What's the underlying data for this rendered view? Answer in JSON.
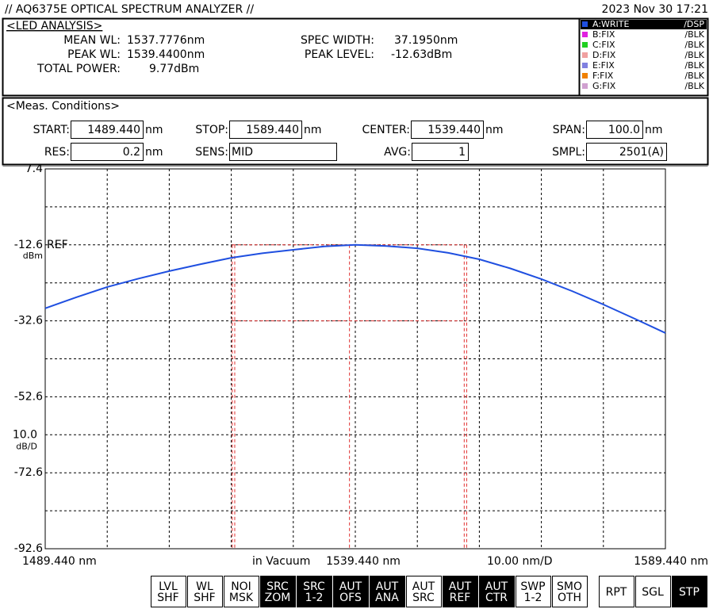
{
  "header": {
    "title": "// AQ6375E OPTICAL SPECTRUM ANALYZER //",
    "datetime": "2023 Nov 30 17:21"
  },
  "analysis": {
    "title": "<LED ANALYSIS>",
    "left": [
      {
        "label": "MEAN WL:",
        "value": "1537.7776nm"
      },
      {
        "label": "PEAK WL:",
        "value": "1539.4400nm"
      },
      {
        "label": "TOTAL POWER:",
        "value": "9.77dBm"
      }
    ],
    "right": [
      {
        "label": "SPEC WIDTH:",
        "value": "37.1950nm"
      },
      {
        "label": "PEAK LEVEL:",
        "value": "-12.63dBm"
      }
    ]
  },
  "traces": [
    {
      "name": "A:WRITE",
      "mode": "/DSP",
      "color": "#1f4fe0",
      "active": true
    },
    {
      "name": "B:FIX",
      "mode": "/BLK",
      "color": "#e020e0",
      "active": false
    },
    {
      "name": "C:FIX",
      "mode": "/BLK",
      "color": "#20d020",
      "active": false
    },
    {
      "name": "D:FIX",
      "mode": "/BLK",
      "color": "#f0a0a0",
      "active": false
    },
    {
      "name": "E:FIX",
      "mode": "/BLK",
      "color": "#8080e0",
      "active": false
    },
    {
      "name": "F:FIX",
      "mode": "/BLK",
      "color": "#f08000",
      "active": false
    },
    {
      "name": "G:FIX",
      "mode": "/BLK",
      "color": "#d0a0d0",
      "active": false
    }
  ],
  "conditions": {
    "title": "<Meas. Conditions>",
    "rows": [
      [
        {
          "label": "START:",
          "value": "1489.440",
          "unit": "nm"
        },
        {
          "label": "STOP:",
          "value": "1589.440",
          "unit": "nm"
        },
        {
          "label": "CENTER:",
          "value": "1539.440",
          "unit": "nm"
        },
        {
          "label": "SPAN:",
          "value": "100.0",
          "unit": "nm"
        }
      ],
      [
        {
          "label": "RES:",
          "value": "0.2",
          "unit": "nm"
        },
        {
          "label": "SENS:",
          "value": "MID"
        },
        {
          "label": "AVG:",
          "value": "1"
        },
        {
          "label": "SMPL:",
          "value": "2501(A)"
        }
      ]
    ]
  },
  "chart_data": {
    "type": "line",
    "x": [
      1489.44,
      1494.44,
      1499.44,
      1504.44,
      1509.44,
      1514.44,
      1519.44,
      1524.44,
      1529.44,
      1534.44,
      1539.44,
      1544.44,
      1549.44,
      1554.44,
      1559.44,
      1564.44,
      1569.44,
      1574.44,
      1579.44,
      1584.44,
      1589.44
    ],
    "series": [
      {
        "name": "A:WRITE",
        "color": "#1f4fe0",
        "values": [
          -29.3,
          -26.4,
          -23.7,
          -21.5,
          -19.5,
          -17.7,
          -16.0,
          -14.8,
          -13.9,
          -13.0,
          -12.6,
          -12.9,
          -13.5,
          -14.7,
          -16.4,
          -18.8,
          -21.6,
          -24.8,
          -28.3,
          -32.0,
          -35.8
        ]
      }
    ],
    "xlim": [
      1489.44,
      1589.44
    ],
    "ylim": [
      -92.6,
      7.4
    ],
    "xticks": [
      {
        "value": 1489.44,
        "label": "1489.440 nm"
      },
      {
        "value": 1539.44,
        "label": "1539.440 nm"
      },
      {
        "value": 1589.44,
        "label": "1589.440 nm"
      }
    ],
    "yticks": [
      7.4,
      -12.6,
      -32.6,
      -52.6,
      -72.6,
      -92.6
    ],
    "xgrid": [
      1499.44,
      1509.44,
      1519.44,
      1529.44,
      1539.44,
      1549.44,
      1559.44,
      1569.44,
      1579.44
    ],
    "ygrid": [
      -2.6,
      -12.6,
      -22.6,
      -32.6,
      -42.6,
      -52.6,
      -62.6,
      -72.6,
      -82.6
    ],
    "grid": true,
    "ref_level": -12.6,
    "ref_label": "REF",
    "y_unit": "dBm",
    "y_division": {
      "value": -62.6,
      "label": "10.0"
    },
    "y_division_unit": "dB/D",
    "x_note": "in Vacuum",
    "x_division": "10.00 nm/D",
    "marker_color": "#e03030",
    "marker_x": [
      1519.6,
      1520.0,
      1538.5,
      1557.0,
      1557.4
    ],
    "marker_y": [
      -12.6,
      -32.6
    ]
  },
  "softkeys": [
    {
      "label": [
        "LVL",
        "SHF"
      ],
      "active": false
    },
    {
      "label": [
        "WL",
        "SHF"
      ],
      "active": false
    },
    {
      "label": [
        "NOI",
        "MSK"
      ],
      "active": false
    },
    {
      "label": [
        "SRC",
        "ZOM"
      ],
      "active": true
    },
    {
      "label": [
        "SRC",
        "1-2"
      ],
      "active": true
    },
    {
      "label": [
        "AUT",
        "OFS"
      ],
      "active": true
    },
    {
      "label": [
        "AUT",
        "ANA"
      ],
      "active": true
    },
    {
      "label": [
        "AUT",
        "SRC"
      ],
      "active": false
    },
    {
      "label": [
        "AUT",
        "REF"
      ],
      "active": true
    },
    {
      "label": [
        "AUT",
        "CTR"
      ],
      "active": true
    },
    {
      "label": [
        "SWP",
        "1-2"
      ],
      "active": false
    },
    {
      "label": [
        "SMO",
        "OTH"
      ],
      "active": false
    }
  ],
  "sweep_buttons": [
    {
      "label": "RPT",
      "active": false
    },
    {
      "label": "SGL",
      "active": false
    },
    {
      "label": "STP",
      "active": true
    }
  ]
}
